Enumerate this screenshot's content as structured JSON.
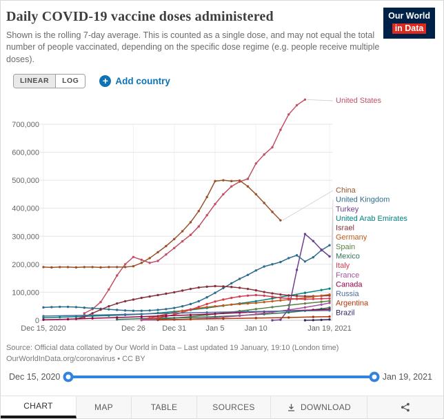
{
  "header": {
    "title": "Daily COVID-19 vaccine doses administered",
    "subtitle": "Shown is the rolling 7-day average. This is counted as a single dose, and may not equal the total number of people vaccinated, depending on the specific dose regime (e.g. people receive multiple doses).",
    "logo": {
      "line1": "Our World",
      "line2": "in Data"
    }
  },
  "controls": {
    "linear_label": "LINEAR",
    "log_label": "LOG",
    "add_country_label": "Add country"
  },
  "colors": {
    "accent_blue": "#0d73b5",
    "slider_blue": "#3282e0",
    "logo_navy": "#002147",
    "logo_red": "#dc2a1e",
    "active_tab_underline": "#161616"
  },
  "chart_data": {
    "type": "line",
    "title": "Daily COVID-19 vaccine doses administered",
    "xlabel": "",
    "ylabel": "",
    "x_unit": "days since Dec 15, 2020",
    "x_range_days": [
      0,
      35
    ],
    "x_tick_days": [
      0,
      11,
      16,
      21,
      26,
      35
    ],
    "x_tick_labels": [
      "Dec 15, 2020",
      "Dec 26",
      "Dec 31",
      "Jan 5",
      "Jan 10",
      "Jan 19, 2021"
    ],
    "y_axis_max": 700000,
    "ylim": [
      0,
      800000
    ],
    "y_ticks": [
      0,
      100000,
      200000,
      300000,
      400000,
      500000,
      600000,
      700000
    ],
    "grid": true,
    "legend_position": "right-labels",
    "series": [
      {
        "name": "United States",
        "color": "#c15065",
        "points": [
          [
            5,
            25000
          ],
          [
            6,
            40000
          ],
          [
            7,
            65000
          ],
          [
            8,
            110000
          ],
          [
            9,
            160000
          ],
          [
            10,
            200000
          ],
          [
            11,
            226000
          ],
          [
            12,
            216000
          ],
          [
            13,
            205000
          ],
          [
            14,
            212000
          ],
          [
            15,
            235000
          ],
          [
            16,
            258000
          ],
          [
            17,
            282000
          ],
          [
            18,
            305000
          ],
          [
            19,
            335000
          ],
          [
            20,
            375000
          ],
          [
            21,
            415000
          ],
          [
            22,
            450000
          ],
          [
            23,
            478000
          ],
          [
            24,
            495000
          ],
          [
            25,
            505000
          ],
          [
            26,
            560000
          ],
          [
            27,
            592000
          ],
          [
            28,
            618000
          ],
          [
            29,
            680000
          ],
          [
            30,
            735000
          ],
          [
            31,
            768000
          ],
          [
            32,
            788000
          ]
        ]
      },
      {
        "name": "China",
        "color": "#9a5129",
        "points": [
          [
            0,
            190000
          ],
          [
            1,
            189000
          ],
          [
            2,
            190000
          ],
          [
            3,
            190000
          ],
          [
            4,
            189000
          ],
          [
            5,
            190000
          ],
          [
            6,
            190000
          ],
          [
            7,
            189000
          ],
          [
            8,
            190000
          ],
          [
            9,
            190000
          ],
          [
            10,
            190000
          ],
          [
            11,
            193000
          ],
          [
            12,
            205000
          ],
          [
            13,
            222000
          ],
          [
            14,
            243000
          ],
          [
            15,
            265000
          ],
          [
            16,
            290000
          ],
          [
            17,
            318000
          ],
          [
            18,
            350000
          ],
          [
            19,
            390000
          ],
          [
            20,
            440000
          ],
          [
            21,
            497000
          ],
          [
            22,
            500000
          ],
          [
            23,
            497000
          ],
          [
            24,
            499000
          ],
          [
            25,
            478000
          ],
          [
            26,
            450000
          ],
          [
            27,
            419000
          ],
          [
            28,
            387000
          ],
          [
            29,
            357000
          ]
        ]
      },
      {
        "name": "United Kingdom",
        "color": "#2c6c8c",
        "points": [
          [
            0,
            46000
          ],
          [
            1,
            47000
          ],
          [
            2,
            48000
          ],
          [
            3,
            48000
          ],
          [
            4,
            47000
          ],
          [
            5,
            45000
          ],
          [
            6,
            43000
          ],
          [
            7,
            41000
          ],
          [
            8,
            39000
          ],
          [
            9,
            37000
          ],
          [
            10,
            35000
          ],
          [
            11,
            34000
          ],
          [
            12,
            34000
          ],
          [
            13,
            35000
          ],
          [
            14,
            37000
          ],
          [
            15,
            40000
          ],
          [
            16,
            44000
          ],
          [
            17,
            50000
          ],
          [
            18,
            58000
          ],
          [
            19,
            68000
          ],
          [
            20,
            82000
          ],
          [
            21,
            98000
          ],
          [
            22,
            115000
          ],
          [
            23,
            132000
          ],
          [
            24,
            148000
          ],
          [
            25,
            162000
          ],
          [
            26,
            178000
          ],
          [
            27,
            192000
          ],
          [
            28,
            200000
          ],
          [
            29,
            208000
          ],
          [
            30,
            222000
          ],
          [
            31,
            232000
          ],
          [
            32,
            210000
          ],
          [
            33,
            225000
          ],
          [
            34,
            250000
          ],
          [
            35,
            268000
          ]
        ]
      },
      {
        "name": "Turkey",
        "color": "#6d3e91",
        "points": [
          [
            28,
            0
          ],
          [
            29,
            2000
          ],
          [
            30,
            40000
          ],
          [
            31,
            180000
          ],
          [
            32,
            308000
          ],
          [
            33,
            283000
          ],
          [
            34,
            252000
          ],
          [
            35,
            228000
          ]
        ]
      },
      {
        "name": "United Arab Emirates",
        "color": "#00847e",
        "points": [
          [
            0,
            9000
          ],
          [
            2,
            11000
          ],
          [
            4,
            13000
          ],
          [
            6,
            15000
          ],
          [
            8,
            17000
          ],
          [
            10,
            19000
          ],
          [
            12,
            22000
          ],
          [
            14,
            26000
          ],
          [
            16,
            31000
          ],
          [
            18,
            37000
          ],
          [
            20,
            44000
          ],
          [
            22,
            52000
          ],
          [
            24,
            60000
          ],
          [
            26,
            68000
          ],
          [
            28,
            78000
          ],
          [
            30,
            88000
          ],
          [
            32,
            98000
          ],
          [
            34,
            108000
          ],
          [
            35,
            113000
          ]
        ]
      },
      {
        "name": "Israel",
        "color": "#883039",
        "points": [
          [
            4,
            5000
          ],
          [
            5,
            12000
          ],
          [
            6,
            25000
          ],
          [
            7,
            38000
          ],
          [
            8,
            50000
          ],
          [
            9,
            60000
          ],
          [
            10,
            68000
          ],
          [
            11,
            74000
          ],
          [
            12,
            80000
          ],
          [
            13,
            85000
          ],
          [
            14,
            90000
          ],
          [
            15,
            95000
          ],
          [
            16,
            100000
          ],
          [
            17,
            106000
          ],
          [
            18,
            112000
          ],
          [
            19,
            117000
          ],
          [
            20,
            120000
          ],
          [
            21,
            122000
          ],
          [
            22,
            121000
          ],
          [
            23,
            119000
          ],
          [
            24,
            116000
          ],
          [
            25,
            112000
          ],
          [
            26,
            107000
          ],
          [
            27,
            101000
          ],
          [
            28,
            96000
          ],
          [
            29,
            92000
          ],
          [
            30,
            89000
          ],
          [
            31,
            87000
          ],
          [
            32,
            86000
          ],
          [
            33,
            86000
          ],
          [
            34,
            87000
          ],
          [
            35,
            88000
          ]
        ]
      },
      {
        "name": "Germany",
        "color": "#c05917",
        "points": [
          [
            12,
            3000
          ],
          [
            13,
            8000
          ],
          [
            14,
            15000
          ],
          [
            15,
            22000
          ],
          [
            16,
            28000
          ],
          [
            17,
            34000
          ],
          [
            18,
            39000
          ],
          [
            19,
            43000
          ],
          [
            20,
            47000
          ],
          [
            21,
            50000
          ],
          [
            22,
            53000
          ],
          [
            23,
            56000
          ],
          [
            24,
            58000
          ],
          [
            25,
            60000
          ],
          [
            26,
            62000
          ],
          [
            27,
            65000
          ],
          [
            28,
            68000
          ],
          [
            29,
            71000
          ],
          [
            30,
            74000
          ],
          [
            31,
            77000
          ],
          [
            32,
            80000
          ],
          [
            33,
            84000
          ],
          [
            34,
            88000
          ],
          [
            35,
            92000
          ]
        ]
      },
      {
        "name": "Spain",
        "color": "#578145",
        "points": [
          [
            12,
            1000
          ],
          [
            14,
            4000
          ],
          [
            16,
            8000
          ],
          [
            18,
            13000
          ],
          [
            20,
            19000
          ],
          [
            22,
            26000
          ],
          [
            24,
            33000
          ],
          [
            26,
            40000
          ],
          [
            28,
            47000
          ],
          [
            30,
            54000
          ],
          [
            32,
            60000
          ],
          [
            34,
            66000
          ],
          [
            35,
            69000
          ]
        ]
      },
      {
        "name": "Mexico",
        "color": "#2f7355",
        "points": [
          [
            9,
            3000
          ],
          [
            12,
            6000
          ],
          [
            15,
            8000
          ],
          [
            18,
            10000
          ],
          [
            21,
            13000
          ],
          [
            24,
            17000
          ],
          [
            27,
            22000
          ],
          [
            30,
            28000
          ],
          [
            32,
            34000
          ],
          [
            34,
            41000
          ],
          [
            35,
            45000
          ]
        ]
      },
      {
        "name": "Italy",
        "color": "#d73c50",
        "points": [
          [
            12,
            2000
          ],
          [
            13,
            5000
          ],
          [
            14,
            9000
          ],
          [
            15,
            14000
          ],
          [
            16,
            20000
          ],
          [
            17,
            28000
          ],
          [
            18,
            38000
          ],
          [
            19,
            48000
          ],
          [
            20,
            58000
          ],
          [
            21,
            67000
          ],
          [
            22,
            74000
          ],
          [
            23,
            80000
          ],
          [
            24,
            85000
          ],
          [
            25,
            88000
          ],
          [
            26,
            90000
          ],
          [
            27,
            88000
          ],
          [
            28,
            84000
          ],
          [
            29,
            80000
          ],
          [
            30,
            78000
          ],
          [
            31,
            76000
          ],
          [
            32,
            75000
          ],
          [
            33,
            76000
          ],
          [
            34,
            77000
          ],
          [
            35,
            78000
          ]
        ]
      },
      {
        "name": "France",
        "color": "#a2559c",
        "points": [
          [
            12,
            500
          ],
          [
            14,
            1000
          ],
          [
            16,
            2000
          ],
          [
            18,
            4000
          ],
          [
            20,
            7000
          ],
          [
            22,
            11000
          ],
          [
            24,
            16000
          ],
          [
            26,
            22000
          ],
          [
            28,
            29000
          ],
          [
            30,
            37000
          ],
          [
            32,
            46000
          ],
          [
            34,
            56000
          ],
          [
            35,
            62000
          ]
        ]
      },
      {
        "name": "Canada",
        "color": "#970046",
        "points": [
          [
            0,
            2000
          ],
          [
            3,
            4000
          ],
          [
            6,
            7000
          ],
          [
            9,
            10000
          ],
          [
            12,
            13000
          ],
          [
            15,
            16000
          ],
          [
            18,
            19000
          ],
          [
            21,
            23000
          ],
          [
            24,
            27000
          ],
          [
            27,
            31000
          ],
          [
            30,
            34000
          ],
          [
            33,
            37000
          ],
          [
            35,
            39000
          ]
        ]
      },
      {
        "name": "Russia",
        "color": "#4c6a9c",
        "points": [
          [
            0,
            15000
          ],
          [
            5,
            18000
          ],
          [
            10,
            21000
          ],
          [
            15,
            25000
          ],
          [
            20,
            28000
          ],
          [
            25,
            31000
          ],
          [
            30,
            33000
          ],
          [
            35,
            35000
          ]
        ]
      },
      {
        "name": "Argentina",
        "color": "#b13507",
        "points": [
          [
            14,
            2000
          ],
          [
            18,
            4000
          ],
          [
            22,
            6000
          ],
          [
            26,
            8000
          ],
          [
            30,
            10000
          ],
          [
            33,
            12000
          ],
          [
            35,
            13000
          ]
        ]
      },
      {
        "name": "Brazil",
        "color": "#2e2a66",
        "points": [
          [
            32,
            0
          ],
          [
            33,
            500
          ],
          [
            34,
            1500
          ],
          [
            35,
            3000
          ]
        ]
      }
    ]
  },
  "footer": {
    "source_line1": "Source: Official data collated by Our World in Data – Last updated 19 January, 19:10 (London time)",
    "source_line2": "OurWorldInData.org/coronavirus • CC BY"
  },
  "timeline": {
    "start": "Dec 15, 2020",
    "end": "Jan 19, 2021"
  },
  "tabs": [
    {
      "label": "CHART",
      "active": true
    },
    {
      "label": "MAP",
      "active": false
    },
    {
      "label": "TABLE",
      "active": false
    },
    {
      "label": "SOURCES",
      "active": false
    },
    {
      "label": "DOWNLOAD",
      "active": false
    }
  ]
}
